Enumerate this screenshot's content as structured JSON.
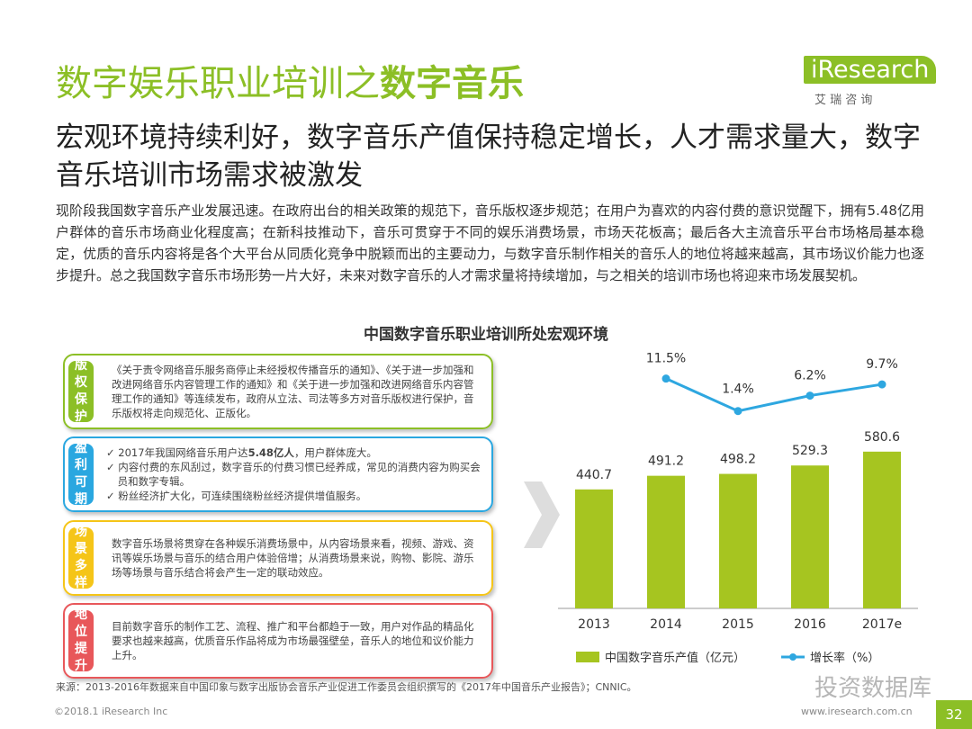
{
  "header": {
    "title_plain": "数字娱乐职业培训之",
    "title_bold": "数字音乐",
    "logo": "iResearch",
    "logo_sub": "艾 瑞 咨 询",
    "subtitle": "宏观环境持续利好，数字音乐产值保持稳定增长，人才需求量大，数字音乐培训市场需求被激发"
  },
  "paragraph": "现阶段我国数字音乐产业发展迅速。在政府出台的相关政策的规范下，音乐版权逐步规范；在用户为喜欢的内容付费的意识觉醒下，拥有5.48亿用户群体的音乐市场商业化程度高；在新科技推动下，音乐可贯穿于不同的娱乐消费场景，市场天花板高；最后各大主流音乐平台市场格局基本稳定，优质的音乐内容将是各个大平台从同质化竞争中脱颖而出的主要动力，与数字音乐制作相关的音乐人的地位将越来越高，其市场议价能力也逐步提升。总之我国数字音乐市场形势一片大好，未来对数字音乐的人才需求量将持续增加，与之相关的培训市场也将迎来市场发展契机。",
  "boxes": [
    {
      "label": "版权保护",
      "color": "#8cbf26",
      "text": "《关于责令网络音乐服务商停止未经授权传播音乐的通知》、《关于进一步加强和改进网络音乐内容管理工作的通知》和《关于进一步加强和改进网络音乐内容管理工作的通知》等连续发布，政府从立法、司法等多方对音乐版权进行保护，音乐版权将走向规范化、正版化。"
    },
    {
      "label": "盈利可期",
      "color": "#2aa7e0",
      "items": [
        {
          "before": "2017年我国网络音乐用户达",
          "bold": "5.48亿人",
          "after": "，用户群体庞大。"
        },
        {
          "before": "内容付费的东风刮过，数字音乐的付费习惯已经养成，常见的消费内容为购买会员和数字专辑。"
        },
        {
          "before": "粉丝经济扩大化，可连续围绕粉丝经济提供增值服务。"
        }
      ]
    },
    {
      "label": "场景多样",
      "color": "#f5c518",
      "text": "数字音乐场景将贯穿在各种娱乐消费场景中，从内容场景来看，视频、游戏、资讯等娱乐场景与音乐的结合用户体验倍增；从消费场景来说，购物、影院、游乐场等场景与音乐结合将会产生一定的联动效应。"
    },
    {
      "label": "地位提升",
      "color": "#e8575a",
      "text": "目前数字音乐的制作工艺、流程、推广和平台都趋于一致，用户对作品的精品化要求也越来越高，优质音乐作品将成为市场最强壁垒，音乐人的地位和议价能力上升。"
    }
  ],
  "chart_data": {
    "type": "bar_line",
    "title": "中国数字音乐职业培训所处宏观环境",
    "categories": [
      "2013",
      "2014",
      "2015",
      "2016",
      "2017e"
    ],
    "series": [
      {
        "name": "中国数字音乐产值（亿元）",
        "color": "#a6c520",
        "values": [
          440.7,
          491.2,
          498.2,
          529.3,
          580.6
        ]
      },
      {
        "name": "增长率（%）",
        "color": "#2ea7e0",
        "axis": "y2",
        "values": [
          null,
          11.5,
          1.4,
          6.2,
          9.7
        ],
        "value_labels": [
          null,
          "11.5%",
          "1.4%",
          "6.2%",
          "9.7%"
        ]
      }
    ],
    "ylim": [
      0,
      1000
    ],
    "y2lim": [
      -60,
      24
    ],
    "legend": "bottom"
  },
  "footer": {
    "source": "来源：2013-2016年数据来自中国印象与数字出版协会音乐产业促进工作委员会组织撰写的《2017年中国音乐产业报告》；CNNIC。",
    "copyright": "©2018.1 iResearch Inc",
    "url": "www.iresearch.com.cn",
    "page": "32",
    "watermark": "投资数据库"
  }
}
